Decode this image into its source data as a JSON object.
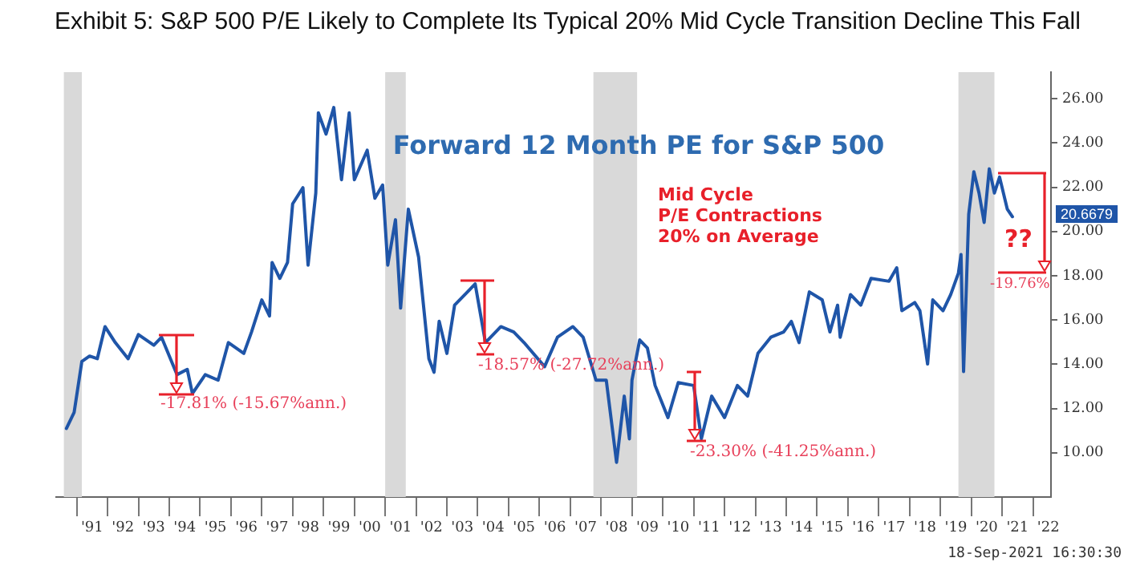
{
  "chart_data": {
    "type": "line",
    "title": "Exhibit 5:  S&P 500 P/E Likely to Complete Its Typical 20% Mid Cycle Transition Decline This Fall",
    "subtitle": "Forward 12 Month PE for S&P 500",
    "xlim": [
      "1990-05",
      "2022-08"
    ],
    "ylim": [
      8.0,
      27.2
    ],
    "yticks": [
      {
        "value": 10,
        "label": "10.00"
      },
      {
        "value": 12,
        "label": "12.00"
      },
      {
        "value": 14,
        "label": "14.00"
      },
      {
        "value": 16,
        "label": "16.00"
      },
      {
        "value": 18,
        "label": "18.00"
      },
      {
        "value": 20,
        "label": "20.00"
      },
      {
        "value": 22,
        "label": "22.00"
      },
      {
        "value": 24,
        "label": "24.00"
      },
      {
        "value": 26,
        "label": "26.00"
      }
    ],
    "xticks": [
      {
        "value": "1991",
        "label": null
      },
      {
        "value": "1991-07",
        "label": "'91"
      },
      {
        "value": "1992",
        "label": null
      },
      {
        "value": "1992-07",
        "label": "'92"
      },
      {
        "value": "1993",
        "label": null
      },
      {
        "value": "1993-07",
        "label": "'93"
      },
      {
        "value": "1994",
        "label": null
      },
      {
        "value": "1994-07",
        "label": "'94"
      },
      {
        "value": "1995",
        "label": null
      },
      {
        "value": "1995-07",
        "label": "'95"
      },
      {
        "value": "1996",
        "label": null
      },
      {
        "value": "1996-07",
        "label": "'96"
      },
      {
        "value": "1997",
        "label": null
      },
      {
        "value": "1997-07",
        "label": "'97"
      },
      {
        "value": "1998",
        "label": null
      },
      {
        "value": "1998-07",
        "label": "'98"
      },
      {
        "value": "1999",
        "label": null
      },
      {
        "value": "1999-07",
        "label": "'99"
      },
      {
        "value": "2000",
        "label": null
      },
      {
        "value": "2000-07",
        "label": "'00"
      },
      {
        "value": "2001",
        "label": null
      },
      {
        "value": "2001-07",
        "label": "'01"
      },
      {
        "value": "2002",
        "label": null
      },
      {
        "value": "2002-07",
        "label": "'02"
      },
      {
        "value": "2003",
        "label": null
      },
      {
        "value": "2003-07",
        "label": "'03"
      },
      {
        "value": "2004",
        "label": null
      },
      {
        "value": "2004-07",
        "label": "'04"
      },
      {
        "value": "2005",
        "label": null
      },
      {
        "value": "2005-07",
        "label": "'05"
      },
      {
        "value": "2006",
        "label": null
      },
      {
        "value": "2006-07",
        "label": "'06"
      },
      {
        "value": "2007",
        "label": null
      },
      {
        "value": "2007-07",
        "label": "'07"
      },
      {
        "value": "2008",
        "label": null
      },
      {
        "value": "2008-07",
        "label": "'08"
      },
      {
        "value": "2009",
        "label": null
      },
      {
        "value": "2009-07",
        "label": "'09"
      },
      {
        "value": "2010",
        "label": null
      },
      {
        "value": "2010-07",
        "label": "'10"
      },
      {
        "value": "2011",
        "label": null
      },
      {
        "value": "2011-07",
        "label": "'11"
      },
      {
        "value": "2012",
        "label": null
      },
      {
        "value": "2012-07",
        "label": "'12"
      },
      {
        "value": "2013",
        "label": null
      },
      {
        "value": "2013-07",
        "label": "'13"
      },
      {
        "value": "2014",
        "label": null
      },
      {
        "value": "2014-07",
        "label": "'14"
      },
      {
        "value": "2015",
        "label": null
      },
      {
        "value": "2015-07",
        "label": "'15"
      },
      {
        "value": "2016",
        "label": null
      },
      {
        "value": "2016-07",
        "label": "'16"
      },
      {
        "value": "2017",
        "label": null
      },
      {
        "value": "2017-07",
        "label": "'17"
      },
      {
        "value": "2018",
        "label": null
      },
      {
        "value": "2018-07",
        "label": "'18"
      },
      {
        "value": "2019",
        "label": null
      },
      {
        "value": "2019-07",
        "label": "'19"
      },
      {
        "value": "2020",
        "label": null
      },
      {
        "value": "2020-07",
        "label": "'20"
      },
      {
        "value": "2021",
        "label": null
      },
      {
        "value": "2021-07",
        "label": "'21"
      },
      {
        "value": "2022",
        "label": null
      },
      {
        "value": "2022-07",
        "label": "'22"
      }
    ],
    "grid": false,
    "legend": false,
    "marker": "none",
    "series": [
      {
        "color": "#1f55a8",
        "x": [
          "1990-09",
          "1990-12",
          "1991-03",
          "1991-06",
          "1991-09",
          "1991-12",
          "1992-04",
          "1992-09",
          "1993-01",
          "1993-07",
          "1993-10",
          "1994-04",
          "1994-08",
          "1994-10",
          "1995-03",
          "1995-08",
          "1995-12",
          "1996-06",
          "1996-09",
          "1997-01",
          "1997-04",
          "1997-05",
          "1997-08",
          "1997-11",
          "1998-01",
          "1998-05",
          "1998-07",
          "1998-10",
          "1998-11",
          "1999-02",
          "1999-05",
          "1999-08",
          "1999-11",
          "2000-01",
          "2000-06",
          "2000-09",
          "2000-12",
          "2001-02",
          "2001-05",
          "2001-07",
          "2001-10",
          "2002-02",
          "2002-06",
          "2002-08",
          "2002-10",
          "2003-01",
          "2003-04",
          "2003-10",
          "2003-12",
          "2004-04",
          "2004-10",
          "2005-03",
          "2005-07",
          "2006-03",
          "2006-08",
          "2007-02",
          "2007-06",
          "2007-11",
          "2008-03",
          "2008-07",
          "2008-10",
          "2008-12",
          "2009-01",
          "2009-04",
          "2009-07",
          "2009-10",
          "2010-03",
          "2010-07",
          "2011-01",
          "2011-04",
          "2011-08",
          "2012-01",
          "2012-06",
          "2012-10",
          "2013-02",
          "2013-07",
          "2013-12",
          "2014-03",
          "2014-06",
          "2014-10",
          "2015-03",
          "2015-06",
          "2015-09",
          "2015-10",
          "2016-02",
          "2016-06",
          "2016-10",
          "2017-05",
          "2017-08",
          "2017-10",
          "2018-03",
          "2018-05",
          "2018-08",
          "2018-10",
          "2019-02",
          "2019-05",
          "2019-08",
          "2019-09",
          "2019-10",
          "2019-12",
          "2020-02",
          "2020-04",
          "2020-06",
          "2020-08",
          "2020-10",
          "2020-12",
          "2021-03",
          "2021-05"
        ],
        "values": [
          11.1,
          11.83,
          14.13,
          14.37,
          14.25,
          15.7,
          14.98,
          14.25,
          15.34,
          14.86,
          15.22,
          13.53,
          13.77,
          12.68,
          13.53,
          13.28,
          14.98,
          14.49,
          15.46,
          16.91,
          16.18,
          18.6,
          17.88,
          18.6,
          21.25,
          21.98,
          18.48,
          21.74,
          25.36,
          24.4,
          25.6,
          22.34,
          25.36,
          22.34,
          23.67,
          21.5,
          22.1,
          18.48,
          20.53,
          16.54,
          21.01,
          18.84,
          14.25,
          13.64,
          15.94,
          14.49,
          16.67,
          17.39,
          17.63,
          14.98,
          15.7,
          15.46,
          14.98,
          13.89,
          15.22,
          15.7,
          15.22,
          13.28,
          13.28,
          9.57,
          12.56,
          10.63,
          13.28,
          15.1,
          14.73,
          13.04,
          11.59,
          13.17,
          13.04,
          10.63,
          12.56,
          11.59,
          13.04,
          12.56,
          14.49,
          15.22,
          15.46,
          15.94,
          14.98,
          17.27,
          16.91,
          15.46,
          16.67,
          15.22,
          17.15,
          16.67,
          17.88,
          17.75,
          18.36,
          16.42,
          16.79,
          16.42,
          14.01,
          16.91,
          16.42,
          17.15,
          18.12,
          18.96,
          13.67,
          20.78,
          22.7,
          21.74,
          20.41,
          22.83,
          21.74,
          22.46,
          21.01,
          20.67
        ]
      }
    ],
    "bands": [
      {
        "axis": "x",
        "from": "1990-08",
        "to": "1991-03",
        "color": "#d9d9d9"
      },
      {
        "axis": "x",
        "from": "2001-01",
        "to": "2001-09",
        "color": "#d9d9d9"
      },
      {
        "axis": "x",
        "from": "2007-10",
        "to": "2009-03",
        "color": "#d9d9d9"
      },
      {
        "axis": "x",
        "from": "2019-08",
        "to": "2020-10",
        "color": "#d9d9d9"
      }
    ],
    "annotations": [
      "Mid Cycle\nP/E Contractions\n20% on Average",
      "18-Sep-2021 16:30:30",
      "-17.81% (-15.67%ann.)",
      "-18.57% (-27.72%ann.)",
      "-23.30% (-41.25%ann.)",
      "-19.76%",
      "??",
      "20.6679"
    ]
  }
}
